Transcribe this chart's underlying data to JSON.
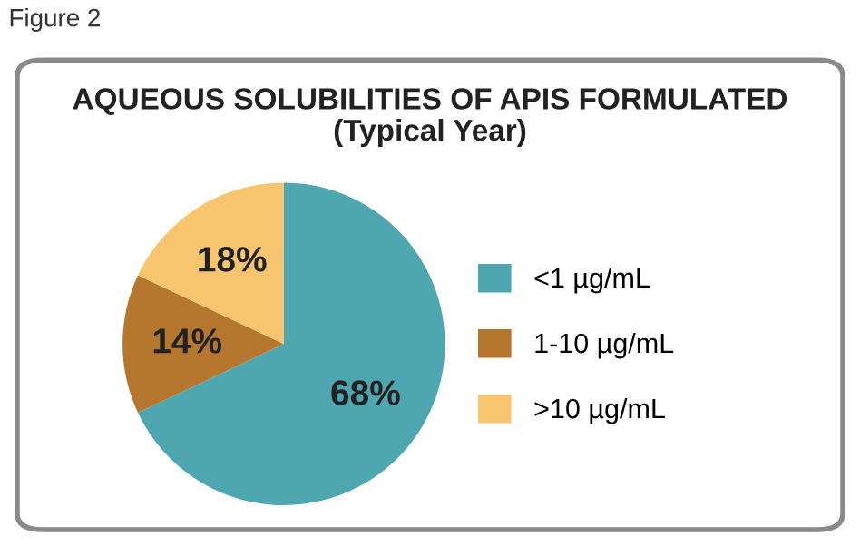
{
  "chart_data": {
    "type": "pie",
    "title": "AQUEOUS SOLUBILITIES OF APIS FORMULATED\n(Typical Year)",
    "annotations": [
      "Figure 2"
    ],
    "categories": [
      "<1 µg/mL",
      "1-10 µg/mL",
      ">10 µg/mL"
    ],
    "values": [
      68,
      14,
      18
    ],
    "value_labels": [
      "68%",
      "14%",
      "18%"
    ],
    "colors": [
      "#4ea6b0",
      "#b5772e",
      "#f6c56e"
    ],
    "legend": "right"
  }
}
